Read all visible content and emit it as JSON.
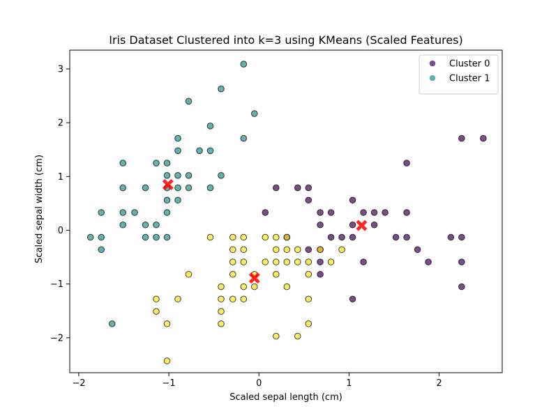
{
  "chart_data": {
    "type": "scatter",
    "title": "Iris Dataset Clustered into k=3 using KMeans (Scaled Features)",
    "xlabel": "Scaled sepal length (cm)",
    "ylabel": "Scaled sepal width (cm)",
    "xlim": [
      -2.1,
      2.7
    ],
    "ylim": [
      -2.65,
      3.35
    ],
    "xticks": [
      -2,
      -1,
      0,
      1,
      2
    ],
    "yticks": [
      -2,
      -1,
      0,
      1,
      2,
      3
    ],
    "grid": false,
    "legend_position": "top-right",
    "series": [
      {
        "name": "Cluster 0",
        "color": "#440154",
        "points": [
          [
            2.25,
            1.71
          ],
          [
            2.49,
            1.71
          ],
          [
            1.64,
            1.25
          ],
          [
            0.19,
            0.79
          ],
          [
            0.43,
            0.79
          ],
          [
            0.55,
            0.79
          ],
          [
            0.55,
            0.56
          ],
          [
            1.04,
            0.56
          ],
          [
            0.07,
            0.33
          ],
          [
            0.68,
            0.33
          ],
          [
            0.8,
            0.33
          ],
          [
            1.16,
            0.33
          ],
          [
            1.28,
            0.33
          ],
          [
            1.4,
            0.33
          ],
          [
            1.64,
            0.33
          ],
          [
            0.68,
            0.1
          ],
          [
            1.04,
            0.1
          ],
          [
            1.28,
            0.1
          ],
          [
            0.31,
            -0.13
          ],
          [
            0.8,
            -0.13
          ],
          [
            0.92,
            -0.13
          ],
          [
            1.04,
            -0.13
          ],
          [
            1.52,
            -0.13
          ],
          [
            1.64,
            -0.13
          ],
          [
            2.13,
            -0.13
          ],
          [
            2.25,
            -0.13
          ],
          [
            0.55,
            -0.36
          ],
          [
            0.68,
            -0.36
          ],
          [
            1.76,
            -0.36
          ],
          [
            0.68,
            -0.59
          ],
          [
            1.16,
            -0.59
          ],
          [
            1.88,
            -0.59
          ],
          [
            2.25,
            -0.59
          ],
          [
            0.68,
            -0.82
          ],
          [
            2.25,
            -1.05
          ],
          [
            1.04,
            -1.28
          ]
        ]
      },
      {
        "name": "Cluster 1",
        "color": "#21918c",
        "points": [
          [
            -0.17,
            3.09
          ],
          [
            -0.42,
            2.63
          ],
          [
            -0.78,
            2.4
          ],
          [
            -0.05,
            2.17
          ],
          [
            -0.54,
            1.94
          ],
          [
            -0.9,
            1.71
          ],
          [
            -0.17,
            1.71
          ],
          [
            -0.66,
            1.48
          ],
          [
            -0.54,
            1.48
          ],
          [
            -0.9,
            1.48
          ],
          [
            -1.51,
            1.25
          ],
          [
            -1.14,
            1.25
          ],
          [
            -1.02,
            1.25
          ],
          [
            -1.02,
            1.02
          ],
          [
            -0.9,
            1.02
          ],
          [
            -0.78,
            1.02
          ],
          [
            -0.42,
            1.02
          ],
          [
            -1.51,
            0.79
          ],
          [
            -1.26,
            0.79
          ],
          [
            -1.02,
            0.79
          ],
          [
            -0.9,
            0.79
          ],
          [
            -0.78,
            0.79
          ],
          [
            -0.54,
            0.79
          ],
          [
            -1.02,
            0.56
          ],
          [
            -0.9,
            0.56
          ],
          [
            -1.75,
            0.33
          ],
          [
            -1.51,
            0.33
          ],
          [
            -1.38,
            0.33
          ],
          [
            -1.02,
            0.33
          ],
          [
            -1.51,
            0.1
          ],
          [
            -1.26,
            0.1
          ],
          [
            -1.14,
            0.1
          ],
          [
            -1.87,
            -0.13
          ],
          [
            -1.75,
            -0.13
          ],
          [
            -1.26,
            -0.13
          ],
          [
            -1.14,
            -0.13
          ],
          [
            -1.02,
            -0.13
          ],
          [
            -1.75,
            -0.36
          ],
          [
            -1.63,
            -1.74
          ]
        ]
      },
      {
        "name": "",
        "color": "#fde725",
        "points": [
          [
            -0.54,
            -0.13
          ],
          [
            -0.29,
            -0.13
          ],
          [
            -0.17,
            -0.13
          ],
          [
            0.07,
            -0.13
          ],
          [
            0.19,
            -0.13
          ],
          [
            0.31,
            -0.13
          ],
          [
            -0.29,
            -0.36
          ],
          [
            -0.17,
            -0.36
          ],
          [
            0.19,
            -0.36
          ],
          [
            0.31,
            -0.36
          ],
          [
            0.43,
            -0.36
          ],
          [
            0.68,
            -0.36
          ],
          [
            0.92,
            -0.36
          ],
          [
            -0.29,
            -0.59
          ],
          [
            -0.17,
            -0.59
          ],
          [
            0.07,
            -0.59
          ],
          [
            0.19,
            -0.59
          ],
          [
            0.31,
            -0.59
          ],
          [
            0.43,
            -0.59
          ],
          [
            0.55,
            -0.59
          ],
          [
            0.8,
            -0.59
          ],
          [
            -0.78,
            -0.82
          ],
          [
            -0.29,
            -0.82
          ],
          [
            -0.05,
            -0.82
          ],
          [
            0.19,
            -0.82
          ],
          [
            0.55,
            -0.82
          ],
          [
            -0.42,
            -1.05
          ],
          [
            -0.17,
            -1.05
          ],
          [
            -0.05,
            -1.05
          ],
          [
            0.31,
            -1.05
          ],
          [
            -1.14,
            -1.28
          ],
          [
            -0.9,
            -1.28
          ],
          [
            -0.42,
            -1.28
          ],
          [
            -0.29,
            -1.28
          ],
          [
            -0.17,
            -1.28
          ],
          [
            0.55,
            -1.28
          ],
          [
            -1.14,
            -1.51
          ],
          [
            -0.42,
            -1.51
          ],
          [
            -1.02,
            -1.74
          ],
          [
            -0.42,
            -1.74
          ],
          [
            0.55,
            -1.74
          ],
          [
            0.19,
            -1.97
          ],
          [
            0.43,
            -1.97
          ],
          [
            -1.02,
            -2.43
          ]
        ]
      }
    ],
    "centroids": {
      "color": "#ff0000",
      "points": [
        [
          -1.01,
          0.85
        ],
        [
          1.14,
          0.09
        ],
        [
          -0.05,
          -0.89
        ]
      ]
    }
  }
}
